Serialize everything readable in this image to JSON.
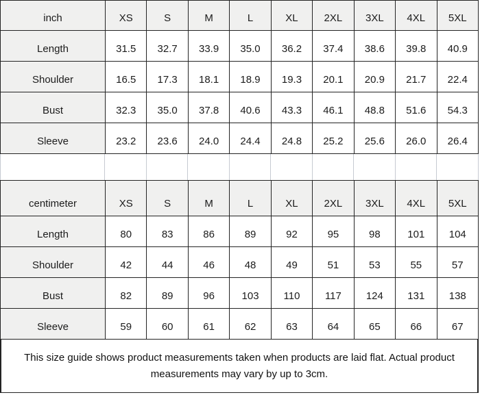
{
  "colors": {
    "header_bg": "#f0f0ef",
    "cell_bg": "#ffffff",
    "table_border": "#232323",
    "spacer_divider": "#c6cad1",
    "text": "#1b1b1b"
  },
  "table_inch": {
    "unit": "inch",
    "sizes": [
      "XS",
      "S",
      "M",
      "L",
      "XL",
      "2XL",
      "3XL",
      "4XL",
      "5XL"
    ],
    "rows": [
      {
        "label": "Length",
        "values": [
          "31.5",
          "32.7",
          "33.9",
          "35.0",
          "36.2",
          "37.4",
          "38.6",
          "39.8",
          "40.9"
        ]
      },
      {
        "label": "Shoulder",
        "values": [
          "16.5",
          "17.3",
          "18.1",
          "18.9",
          "19.3",
          "20.1",
          "20.9",
          "21.7",
          "22.4"
        ]
      },
      {
        "label": "Bust",
        "values": [
          "32.3",
          "35.0",
          "37.8",
          "40.6",
          "43.3",
          "46.1",
          "48.8",
          "51.6",
          "54.3"
        ]
      },
      {
        "label": "Sleeve",
        "values": [
          "23.2",
          "23.6",
          "24.0",
          "24.4",
          "24.8",
          "25.2",
          "25.6",
          "26.0",
          "26.4"
        ]
      }
    ]
  },
  "table_cm": {
    "unit": "centimeter",
    "sizes": [
      "XS",
      "S",
      "M",
      "L",
      "XL",
      "2XL",
      "3XL",
      "4XL",
      "5XL"
    ],
    "rows": [
      {
        "label": "Length",
        "values": [
          "80",
          "83",
          "86",
          "89",
          "92",
          "95",
          "98",
          "101",
          "104"
        ]
      },
      {
        "label": "Shoulder",
        "values": [
          "42",
          "44",
          "46",
          "48",
          "49",
          "51",
          "53",
          "55",
          "57"
        ]
      },
      {
        "label": "Bust",
        "values": [
          "82",
          "89",
          "96",
          "103",
          "110",
          "117",
          "124",
          "131",
          "138"
        ]
      },
      {
        "label": "Sleeve",
        "values": [
          "59",
          "60",
          "61",
          "62",
          "63",
          "64",
          "65",
          "66",
          "67"
        ]
      }
    ]
  },
  "note": {
    "text": "This size guide shows product measurements taken when products are laid flat. Actual product measurements may vary by up to 3cm."
  }
}
